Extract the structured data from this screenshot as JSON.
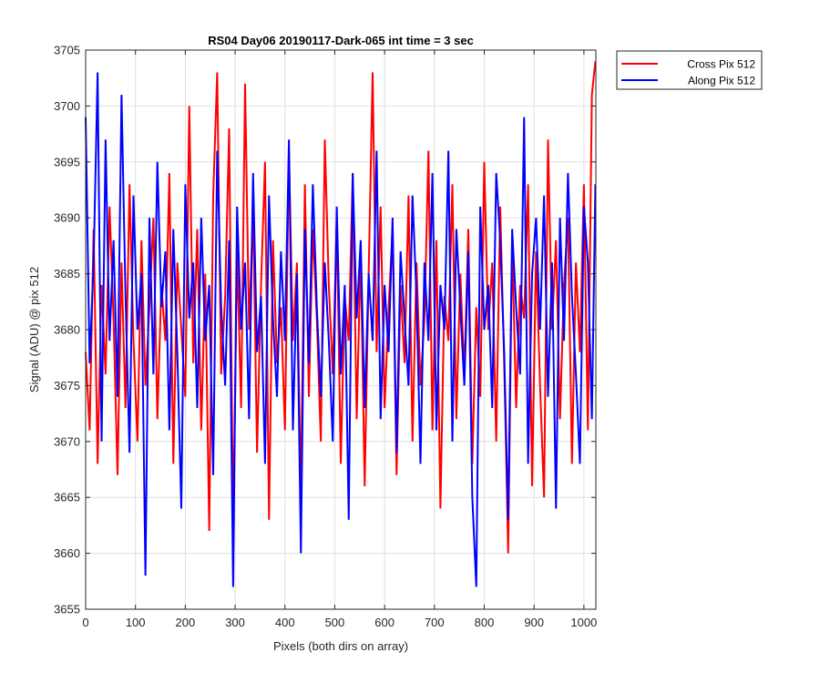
{
  "chart_data": {
    "type": "line",
    "title": "RS04 Day06 20190117-Dark-065 int time = 3 sec",
    "xlabel": "Pixels (both dirs on array)",
    "ylabel": "Signal (ADU) @ pix 512",
    "xlim": [
      0,
      1024
    ],
    "ylim": [
      3655,
      3705
    ],
    "xticks": [
      0,
      100,
      200,
      300,
      400,
      500,
      600,
      700,
      800,
      900,
      1000
    ],
    "yticks": [
      3655,
      3660,
      3665,
      3670,
      3675,
      3680,
      3685,
      3690,
      3695,
      3700,
      3705
    ],
    "grid": true,
    "legend_position": "outside top-right",
    "series_draw_order": [
      "Cross Pix 512",
      "Along Pix 512"
    ],
    "series": [
      {
        "name": "Cross Pix 512",
        "color": "#ff0000",
        "x": [
          0,
          8,
          16,
          24,
          32,
          40,
          48,
          56,
          64,
          72,
          80,
          88,
          96,
          104,
          112,
          120,
          128,
          136,
          144,
          152,
          160,
          168,
          176,
          184,
          192,
          200,
          208,
          216,
          224,
          232,
          240,
          248,
          256,
          264,
          272,
          280,
          288,
          296,
          304,
          312,
          320,
          328,
          336,
          344,
          352,
          360,
          368,
          376,
          384,
          392,
          400,
          408,
          416,
          424,
          432,
          440,
          448,
          456,
          464,
          472,
          480,
          488,
          496,
          504,
          512,
          520,
          528,
          536,
          544,
          552,
          560,
          568,
          576,
          584,
          592,
          600,
          608,
          616,
          624,
          632,
          640,
          648,
          656,
          664,
          672,
          680,
          688,
          696,
          704,
          712,
          720,
          728,
          736,
          744,
          752,
          760,
          768,
          776,
          784,
          792,
          800,
          808,
          816,
          824,
          832,
          840,
          848,
          856,
          864,
          872,
          880,
          888,
          896,
          904,
          912,
          920,
          928,
          936,
          944,
          952,
          960,
          968,
          976,
          984,
          992,
          1000,
          1008,
          1016,
          1023
        ],
        "values": [
          3678,
          3671,
          3689,
          3668,
          3684,
          3676,
          3691,
          3681,
          3667,
          3686,
          3673,
          3693,
          3679,
          3670,
          3688,
          3675,
          3682,
          3690,
          3672,
          3684,
          3679,
          3694,
          3668,
          3686,
          3680,
          3674,
          3700,
          3677,
          3689,
          3671,
          3685,
          3662,
          3692,
          3703,
          3676,
          3683,
          3698,
          3662,
          3687,
          3673,
          3702,
          3680,
          3691,
          3669,
          3684,
          3695,
          3663,
          3688,
          3677,
          3682,
          3671,
          3696,
          3679,
          3686,
          3665,
          3693,
          3674,
          3689,
          3681,
          3670,
          3697,
          3684,
          3676,
          3690,
          3668,
          3683,
          3679,
          3694,
          3672,
          3687,
          3666,
          3685,
          3703,
          3678,
          3691,
          3673,
          3682,
          3689,
          3667,
          3684,
          3677,
          3692,
          3670,
          3686,
          3675,
          3681,
          3696,
          3671,
          3688,
          3664,
          3683,
          3679,
          3693,
          3672,
          3685,
          3676,
          3689,
          3668,
          3682,
          3674,
          3695,
          3680,
          3686,
          3670,
          3691,
          3677,
          3660,
          3688,
          3673,
          3684,
          3681,
          3693,
          3666,
          3687,
          3675,
          3665,
          3697,
          3680,
          3688,
          3672,
          3684,
          3690,
          3668,
          3686,
          3678,
          3693,
          3671,
          3701,
          3704
        ]
      },
      {
        "name": "Along Pix 512",
        "color": "#0000ff",
        "x": [
          0,
          8,
          16,
          24,
          32,
          40,
          48,
          56,
          64,
          72,
          80,
          88,
          96,
          104,
          112,
          120,
          128,
          136,
          144,
          152,
          160,
          168,
          176,
          184,
          192,
          200,
          208,
          216,
          224,
          232,
          240,
          248,
          256,
          264,
          272,
          280,
          288,
          296,
          304,
          312,
          320,
          328,
          336,
          344,
          352,
          360,
          368,
          376,
          384,
          392,
          400,
          408,
          416,
          424,
          432,
          440,
          448,
          456,
          464,
          472,
          480,
          488,
          496,
          504,
          512,
          520,
          528,
          536,
          544,
          552,
          560,
          568,
          576,
          584,
          592,
          600,
          608,
          616,
          624,
          632,
          640,
          648,
          656,
          664,
          672,
          680,
          688,
          696,
          704,
          712,
          720,
          728,
          736,
          744,
          752,
          760,
          768,
          776,
          784,
          792,
          800,
          808,
          816,
          824,
          832,
          840,
          848,
          856,
          864,
          872,
          880,
          888,
          896,
          904,
          912,
          920,
          928,
          936,
          944,
          952,
          960,
          968,
          976,
          984,
          992,
          1000,
          1008,
          1016,
          1023
        ],
        "values": [
          3699,
          3677,
          3686,
          3703,
          3670,
          3697,
          3679,
          3688,
          3674,
          3701,
          3683,
          3669,
          3692,
          3680,
          3685,
          3658,
          3690,
          3676,
          3695,
          3682,
          3687,
          3671,
          3689,
          3678,
          3664,
          3693,
          3681,
          3686,
          3673,
          3690,
          3679,
          3684,
          3667,
          3696,
          3682,
          3675,
          3688,
          3657,
          3691,
          3680,
          3686,
          3672,
          3694,
          3678,
          3683,
          3668,
          3692,
          3681,
          3674,
          3687,
          3679,
          3697,
          3671,
          3685,
          3660,
          3689,
          3677,
          3693,
          3682,
          3674,
          3686,
          3679,
          3670,
          3691,
          3676,
          3684,
          3663,
          3694,
          3681,
          3688,
          3673,
          3685,
          3679,
          3696,
          3672,
          3684,
          3678,
          3690,
          3669,
          3687,
          3681,
          3675,
          3692,
          3683,
          3668,
          3686,
          3679,
          3694,
          3671,
          3684,
          3680,
          3696,
          3670,
          3689,
          3682,
          3675,
          3687,
          3665,
          3657,
          3691,
          3680,
          3684,
          3673,
          3694,
          3688,
          3678,
          3663,
          3689,
          3682,
          3676,
          3699,
          3668,
          3685,
          3690,
          3680,
          3692,
          3674,
          3686,
          3664,
          3690,
          3679,
          3694,
          3683,
          3676,
          3668,
          3691,
          3686,
          3672,
          3693
        ]
      }
    ]
  }
}
